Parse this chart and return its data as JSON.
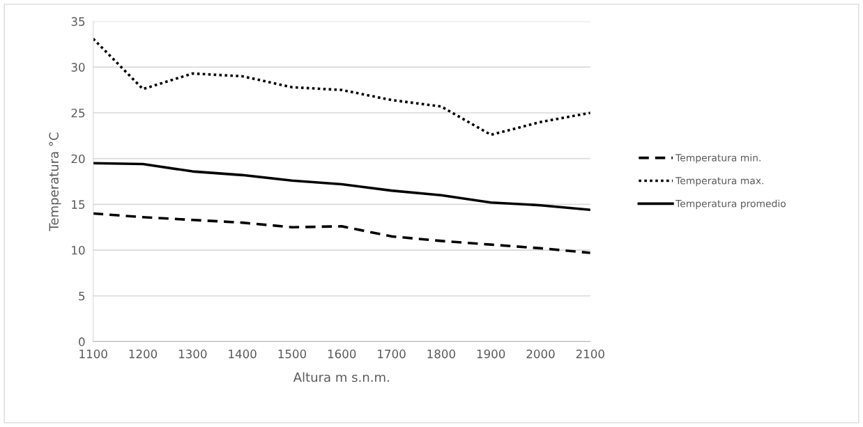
{
  "chart_data": {
    "type": "line",
    "xlabel": "Altura m s.n.m.",
    "ylabel": "Temperatura °C",
    "x": [
      1100,
      1200,
      1300,
      1400,
      1500,
      1600,
      1700,
      1800,
      1900,
      2000,
      2100
    ],
    "series": [
      {
        "name": "Temperatura min.",
        "color": "#000000",
        "line_style": "dashed",
        "values": [
          14.0,
          13.6,
          13.3,
          13.0,
          12.5,
          12.6,
          11.5,
          11.0,
          10.6,
          10.2,
          9.7
        ]
      },
      {
        "name": "Temperatura max.",
        "color": "#000000",
        "line_style": "dotted",
        "values": [
          33.1,
          27.6,
          29.3,
          29.0,
          27.8,
          27.5,
          26.4,
          25.7,
          22.6,
          24.0,
          25.0
        ]
      },
      {
        "name": "Temperatura promedio",
        "color": "#000000",
        "line_style": "solid",
        "values": [
          19.5,
          19.4,
          18.6,
          18.2,
          17.6,
          17.2,
          16.5,
          16.0,
          15.2,
          14.9,
          14.4
        ]
      }
    ],
    "xlim": [
      1100,
      2100
    ],
    "xticks": [
      1100,
      1200,
      1300,
      1400,
      1500,
      1600,
      1700,
      1800,
      1900,
      2000,
      2100
    ],
    "ylim": [
      0,
      35
    ],
    "yticks": [
      0,
      5,
      10,
      15,
      20,
      25,
      30,
      35
    ],
    "grid": "y",
    "legend": "right",
    "marker": "none"
  }
}
